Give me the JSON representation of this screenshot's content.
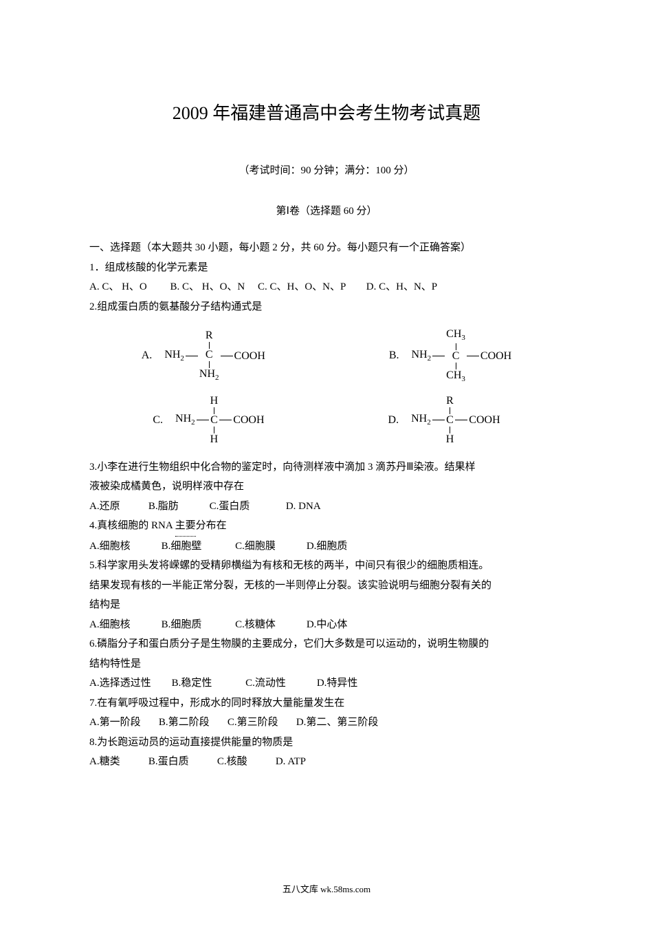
{
  "title": "2009 年福建普通高中会考生物考试真题",
  "subtitle": "（考试时间：90 分钟；满分：100 分）",
  "section_header": "第Ⅰ卷（选择题 60 分）",
  "instructions": "一、选择题（本大题共 30 小题，每小题 2 分，共 60 分。每小题只有一个正确答案）",
  "q1": {
    "text": "1．组成核酸的化学元素是",
    "opts": "A. C、 H、O         B. C、 H、O、N     C. C、H、O、N、P        D. C、H、N、P"
  },
  "q2": {
    "text": "2.组成蛋白质的氨基酸分子结构通式是",
    "formulas": {
      "A": {
        "top": "R",
        "bottom": "NH2",
        "label": "A."
      },
      "B": {
        "top": "CH3",
        "bottom": "CH3",
        "label": "B."
      },
      "C": {
        "top": "H",
        "bottom": "H",
        "label": "C."
      },
      "D": {
        "top": "R",
        "bottom": "H",
        "label": "D."
      }
    }
  },
  "q3": {
    "line1": "3.小李在进行生物组织中化合物的鉴定时，向待测样液中滴加 3 滴苏丹Ⅲ染液。结果样",
    "line2": "液被染成橘黄色，说明样液中存在",
    "opts": "A.还原           B.脂肪            C.蛋白质              D. DNA"
  },
  "q4": {
    "text_pre": "4.真核细胞的 RNA ",
    "text_dotted": "主要",
    "text_post": "分布在",
    "opts": "A.细胞核            B.细胞壁             C.细胞膜            D.细胞质"
  },
  "q5": {
    "line1": "5.科学家用头发将嵘螺的受精卵横缢为有核和无核的两半，中间只有很少的细胞质相连。",
    "line2": "结果发现有核的一半能正常分裂，无核的一半则停止分裂。该实验说明与细胞分裂有关的",
    "line3": "结构是",
    "opts": "A.细胞核            B.细胞质             C.核糖体            D.中心体"
  },
  "q6": {
    "line1": "6.磷脂分子和蛋白质分子是生物膜的主要成分，它们大多数是可以运动的，说明生物膜的",
    "line2": "结构特性是",
    "opts": "A.选择透过性        B.稳定性             C.流动性            D.特异性"
  },
  "q7": {
    "text": "7.在有氧呼吸过程中，形成水的同时释放大量能量发生在",
    "opts": "A.第一阶段       B.第二阶段       C.第三阶段       D.第二、第三阶段"
  },
  "q8": {
    "text": "8.为长跑运动员的运动直接提供能量的物质是",
    "opts": "A.糖类           B.蛋白质           C.核酸           D. ATP"
  },
  "footer": "五八文库 wk.58ms.com"
}
